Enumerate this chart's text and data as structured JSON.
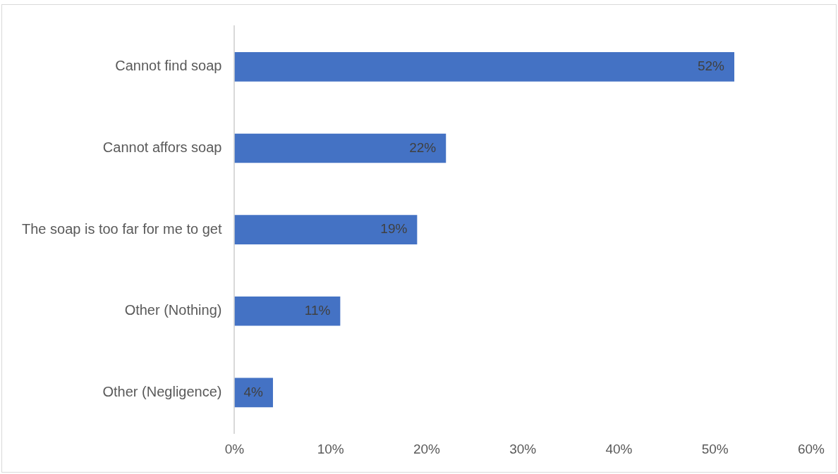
{
  "chart_data": {
    "type": "bar",
    "orientation": "horizontal",
    "categories": [
      "Cannot find soap",
      "Cannot affors soap",
      "The soap is too far for me to get",
      "Other (Nothing)",
      "Other (Negligence)"
    ],
    "values": [
      52,
      22,
      19,
      11,
      4
    ],
    "value_labels": [
      "52%",
      "22%",
      "19%",
      "11%",
      "4%"
    ],
    "color": "#4472c4",
    "xlim": [
      0,
      60
    ],
    "xticks": [
      {
        "value": 0,
        "label": "0%"
      },
      {
        "value": 10,
        "label": "10%"
      },
      {
        "value": 20,
        "label": "20%"
      },
      {
        "value": 30,
        "label": "30%"
      },
      {
        "value": 40,
        "label": "40%"
      },
      {
        "value": 50,
        "label": "50%"
      },
      {
        "value": 60,
        "label": "60%"
      }
    ]
  }
}
